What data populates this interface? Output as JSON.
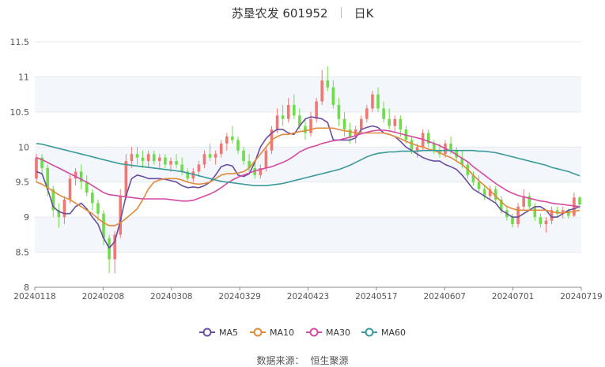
{
  "header": {
    "stock_name": "苏垦农发 601952",
    "period": "日K"
  },
  "footer": {
    "source_label": "数据来源：",
    "source_value": "恒生聚源"
  },
  "colors": {
    "up": "#f07874",
    "down": "#6fdc4a",
    "MA5": "#6a4ea0",
    "MA10": "#e08a3a",
    "MA30": "#d44aa2",
    "MA60": "#3a9a9a",
    "band": "#f3f6fb",
    "axis": "#555555",
    "grid": "#ffffff"
  },
  "chart_data": {
    "type": "candlestick",
    "title": "苏垦农发 601952  日K",
    "ylim": [
      8,
      11.5
    ],
    "y_ticks": [
      "8",
      "8.5",
      "9",
      "9.5",
      "10",
      "10.5",
      "11",
      "11.5"
    ],
    "x_tick_labels": [
      "20240118",
      "20240208",
      "20240308",
      "20240329",
      "20240423",
      "20240517",
      "20240607",
      "20240701",
      "20240719"
    ],
    "grid": "horizontal alternating bands",
    "legend_position": "bottom",
    "legend": [
      "MA5",
      "MA10",
      "MA30",
      "MA60"
    ],
    "candles_ohlc": [
      [
        9.55,
        9.9,
        9.5,
        9.85
      ],
      [
        9.85,
        9.9,
        9.6,
        9.7
      ],
      [
        9.7,
        9.75,
        9.3,
        9.4
      ],
      [
        9.4,
        9.45,
        9.0,
        9.1
      ],
      [
        9.1,
        9.2,
        8.85,
        9.0
      ],
      [
        9.0,
        9.3,
        8.9,
        9.25
      ],
      [
        9.25,
        9.6,
        9.2,
        9.55
      ],
      [
        9.55,
        9.7,
        9.45,
        9.65
      ],
      [
        9.65,
        9.75,
        9.4,
        9.5
      ],
      [
        9.5,
        9.6,
        9.3,
        9.35
      ],
      [
        9.35,
        9.4,
        9.1,
        9.2
      ],
      [
        9.2,
        9.25,
        8.95,
        9.05
      ],
      [
        9.05,
        9.1,
        8.6,
        8.7
      ],
      [
        8.7,
        8.75,
        8.2,
        8.4
      ],
      [
        8.4,
        8.8,
        8.2,
        8.75
      ],
      [
        8.75,
        9.4,
        8.7,
        9.3
      ],
      [
        9.3,
        9.9,
        9.25,
        9.8
      ],
      [
        9.8,
        10.0,
        9.7,
        9.9
      ],
      [
        9.9,
        10.0,
        9.75,
        9.85
      ],
      [
        9.85,
        9.95,
        9.7,
        9.8
      ],
      [
        9.8,
        9.95,
        9.7,
        9.9
      ],
      [
        9.9,
        9.95,
        9.75,
        9.8
      ],
      [
        9.8,
        9.9,
        9.7,
        9.85
      ],
      [
        9.85,
        9.9,
        9.7,
        9.75
      ],
      [
        9.75,
        9.85,
        9.65,
        9.8
      ],
      [
        9.8,
        9.9,
        9.7,
        9.75
      ],
      [
        9.75,
        9.85,
        9.6,
        9.65
      ],
      [
        9.65,
        9.7,
        9.5,
        9.55
      ],
      [
        9.55,
        9.7,
        9.5,
        9.65
      ],
      [
        9.65,
        9.8,
        9.6,
        9.75
      ],
      [
        9.75,
        9.95,
        9.7,
        9.9
      ],
      [
        9.9,
        10.05,
        9.8,
        9.85
      ],
      [
        9.85,
        9.95,
        9.75,
        9.9
      ],
      [
        9.9,
        10.1,
        9.85,
        10.05
      ],
      [
        10.05,
        10.2,
        9.95,
        10.15
      ],
      [
        10.15,
        10.3,
        10.05,
        10.1
      ],
      [
        10.1,
        10.15,
        9.9,
        9.95
      ],
      [
        9.95,
        10.0,
        9.75,
        9.8
      ],
      [
        9.8,
        9.9,
        9.65,
        9.7
      ],
      [
        9.7,
        9.8,
        9.55,
        9.6
      ],
      [
        9.6,
        9.75,
        9.55,
        9.7
      ],
      [
        9.7,
        10.0,
        9.65,
        9.95
      ],
      [
        9.95,
        10.3,
        9.9,
        10.25
      ],
      [
        10.25,
        10.55,
        10.2,
        10.45
      ],
      [
        10.45,
        10.6,
        10.3,
        10.4
      ],
      [
        10.4,
        10.7,
        10.35,
        10.6
      ],
      [
        10.6,
        10.75,
        10.4,
        10.45
      ],
      [
        10.45,
        10.55,
        10.25,
        10.3
      ],
      [
        10.3,
        10.4,
        10.1,
        10.2
      ],
      [
        10.2,
        10.5,
        10.15,
        10.4
      ],
      [
        10.4,
        10.7,
        10.35,
        10.65
      ],
      [
        10.65,
        11.1,
        10.6,
        10.95
      ],
      [
        10.95,
        11.15,
        10.8,
        10.85
      ],
      [
        10.85,
        10.95,
        10.55,
        10.6
      ],
      [
        10.6,
        10.7,
        10.3,
        10.4
      ],
      [
        10.4,
        10.5,
        10.15,
        10.25
      ],
      [
        10.25,
        10.35,
        10.05,
        10.15
      ],
      [
        10.15,
        10.3,
        10.05,
        10.25
      ],
      [
        10.25,
        10.45,
        10.2,
        10.4
      ],
      [
        10.4,
        10.6,
        10.35,
        10.55
      ],
      [
        10.55,
        10.8,
        10.5,
        10.75
      ],
      [
        10.75,
        10.85,
        10.5,
        10.55
      ],
      [
        10.55,
        10.65,
        10.35,
        10.4
      ],
      [
        10.4,
        10.55,
        10.25,
        10.3
      ],
      [
        10.3,
        10.45,
        10.2,
        10.4
      ],
      [
        10.4,
        10.45,
        10.15,
        10.25
      ],
      [
        10.25,
        10.3,
        10.05,
        10.1
      ],
      [
        10.1,
        10.15,
        9.9,
        9.95
      ],
      [
        9.95,
        10.05,
        9.85,
        10.0
      ],
      [
        10.0,
        10.25,
        9.95,
        10.2
      ],
      [
        10.2,
        10.25,
        10.0,
        10.05
      ],
      [
        10.05,
        10.1,
        9.9,
        9.95
      ],
      [
        9.95,
        10.05,
        9.85,
        9.9
      ],
      [
        9.9,
        10.1,
        9.85,
        10.05
      ],
      [
        10.05,
        10.15,
        9.9,
        9.95
      ],
      [
        9.95,
        10.0,
        9.8,
        9.85
      ],
      [
        9.85,
        9.95,
        9.7,
        9.75
      ],
      [
        9.75,
        9.8,
        9.55,
        9.6
      ],
      [
        9.6,
        9.65,
        9.45,
        9.5
      ],
      [
        9.5,
        9.6,
        9.35,
        9.4
      ],
      [
        9.4,
        9.45,
        9.25,
        9.3
      ],
      [
        9.3,
        9.45,
        9.25,
        9.4
      ],
      [
        9.4,
        9.45,
        9.2,
        9.25
      ],
      [
        9.25,
        9.3,
        9.05,
        9.1
      ],
      [
        9.1,
        9.15,
        8.95,
        9.0
      ],
      [
        9.0,
        9.05,
        8.85,
        8.9
      ],
      [
        8.9,
        9.2,
        8.85,
        9.15
      ],
      [
        9.15,
        9.4,
        9.1,
        9.3
      ],
      [
        9.3,
        9.35,
        9.1,
        9.15
      ],
      [
        9.15,
        9.2,
        8.95,
        9.0
      ],
      [
        9.0,
        9.05,
        8.85,
        8.9
      ],
      [
        8.9,
        9.0,
        8.78,
        8.95
      ],
      [
        8.95,
        9.15,
        8.9,
        9.1
      ],
      [
        9.1,
        9.15,
        9.0,
        9.05
      ],
      [
        9.05,
        9.15,
        8.98,
        9.1
      ],
      [
        9.1,
        9.12,
        8.98,
        9.02
      ],
      [
        9.02,
        9.35,
        9.0,
        9.28
      ],
      [
        9.28,
        9.3,
        9.12,
        9.18
      ]
    ],
    "series": [
      {
        "name": "MA5",
        "values": [
          9.65,
          9.62,
          9.4,
          9.15,
          9.08,
          9.05,
          9.05,
          9.15,
          9.2,
          9.12,
          9.0,
          8.9,
          8.7,
          8.56,
          8.65,
          8.95,
          9.3,
          9.55,
          9.6,
          9.58,
          9.55,
          9.55,
          9.55,
          9.54,
          9.52,
          9.5,
          9.45,
          9.42,
          9.43,
          9.42,
          9.45,
          9.5,
          9.6,
          9.72,
          9.75,
          9.73,
          9.6,
          9.58,
          9.62,
          9.78,
          10.0,
          10.12,
          10.2,
          10.25,
          10.25,
          10.2,
          10.18,
          10.3,
          10.4,
          10.43,
          10.42,
          10.4,
          10.35,
          10.1,
          10.1,
          10.1,
          10.1,
          10.13,
          10.25,
          10.28,
          10.3,
          10.28,
          10.2,
          10.18,
          10.15,
          10.08,
          10.0,
          9.95,
          9.9,
          9.85,
          9.82,
          9.8,
          9.8,
          9.75,
          9.72,
          9.68,
          9.6,
          9.5,
          9.4,
          9.35,
          9.3,
          9.25,
          9.2,
          9.1,
          9.05,
          9.0,
          9.0,
          9.05,
          9.1,
          9.15,
          9.15,
          9.1,
          9.0,
          9.0,
          9.05,
          9.1,
          9.12,
          9.15
        ]
      },
      {
        "name": "MA10",
        "values": [
          9.5,
          9.47,
          9.42,
          9.37,
          9.32,
          9.28,
          9.25,
          9.2,
          9.15,
          9.1,
          9.05,
          8.98,
          8.92,
          8.88,
          8.88,
          8.92,
          8.98,
          9.05,
          9.12,
          9.25,
          9.4,
          9.5,
          9.53,
          9.55,
          9.55,
          9.55,
          9.53,
          9.5,
          9.48,
          9.47,
          9.48,
          9.5,
          9.55,
          9.6,
          9.62,
          9.62,
          9.63,
          9.65,
          9.7,
          9.8,
          9.9,
          10.0,
          10.1,
          10.15,
          10.18,
          10.18,
          10.2,
          10.22,
          10.23,
          10.25,
          10.27,
          10.27,
          10.27,
          10.27,
          10.25,
          10.23,
          10.22,
          10.2,
          10.2,
          10.2,
          10.2,
          10.2,
          10.2,
          10.18,
          10.15,
          10.12,
          10.08,
          10.05,
          10.02,
          10.0,
          9.97,
          9.95,
          9.92,
          9.88,
          9.85,
          9.8,
          9.75,
          9.68,
          9.6,
          9.52,
          9.45,
          9.38,
          9.3,
          9.22,
          9.15,
          9.12,
          9.1,
          9.1,
          9.1,
          9.1,
          9.1,
          9.1,
          9.08,
          9.06,
          9.06,
          9.07,
          9.08,
          9.1
        ]
      },
      {
        "name": "MA30",
        "values": [
          9.85,
          9.82,
          9.78,
          9.74,
          9.7,
          9.66,
          9.62,
          9.58,
          9.54,
          9.5,
          9.45,
          9.4,
          9.35,
          9.32,
          9.31,
          9.3,
          9.29,
          9.28,
          9.27,
          9.26,
          9.26,
          9.26,
          9.26,
          9.26,
          9.25,
          9.24,
          9.23,
          9.23,
          9.24,
          9.27,
          9.3,
          9.33,
          9.37,
          9.42,
          9.48,
          9.53,
          9.57,
          9.6,
          9.63,
          9.66,
          9.68,
          9.7,
          9.72,
          9.75,
          9.78,
          9.82,
          9.87,
          9.93,
          9.97,
          10.0,
          10.02,
          10.05,
          10.07,
          10.09,
          10.1,
          10.12,
          10.14,
          10.16,
          10.19,
          10.21,
          10.23,
          10.24,
          10.24,
          10.23,
          10.21,
          10.19,
          10.17,
          10.15,
          10.13,
          10.11,
          10.08,
          10.05,
          10.02,
          9.98,
          9.94,
          9.89,
          9.84,
          9.79,
          9.72,
          9.66,
          9.6,
          9.54,
          9.48,
          9.43,
          9.38,
          9.34,
          9.31,
          9.29,
          9.27,
          9.25,
          9.23,
          9.22,
          9.2,
          9.19,
          9.18,
          9.17,
          9.16,
          9.15
        ]
      },
      {
        "name": "MA60",
        "values": [
          10.05,
          10.04,
          10.02,
          10.0,
          9.98,
          9.96,
          9.94,
          9.92,
          9.9,
          9.88,
          9.86,
          9.84,
          9.82,
          9.8,
          9.78,
          9.76,
          9.75,
          9.74,
          9.73,
          9.72,
          9.71,
          9.7,
          9.69,
          9.68,
          9.67,
          9.66,
          9.65,
          9.63,
          9.61,
          9.59,
          9.57,
          9.55,
          9.53,
          9.51,
          9.5,
          9.49,
          9.48,
          9.47,
          9.46,
          9.45,
          9.45,
          9.45,
          9.46,
          9.47,
          9.48,
          9.5,
          9.52,
          9.54,
          9.56,
          9.58,
          9.6,
          9.62,
          9.64,
          9.66,
          9.68,
          9.71,
          9.74,
          9.78,
          9.82,
          9.86,
          9.89,
          9.91,
          9.92,
          9.93,
          9.93,
          9.94,
          9.94,
          9.94,
          9.94,
          9.95,
          9.95,
          9.95,
          9.95,
          9.95,
          9.95,
          9.95,
          9.95,
          9.95,
          9.95,
          9.94,
          9.94,
          9.93,
          9.92,
          9.9,
          9.88,
          9.86,
          9.84,
          9.82,
          9.8,
          9.78,
          9.76,
          9.74,
          9.71,
          9.69,
          9.67,
          9.65,
          9.62,
          9.59
        ]
      }
    ]
  }
}
